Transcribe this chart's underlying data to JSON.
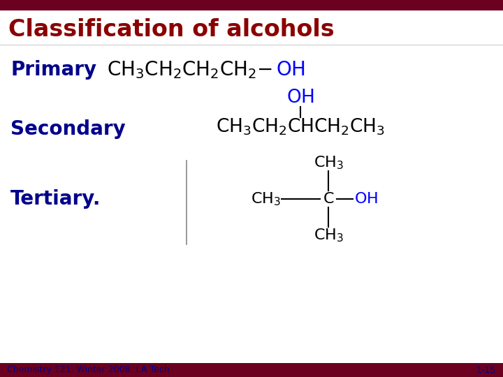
{
  "title": "Classification of alcohols",
  "title_color": "#8B0000",
  "title_bar_color": "#6B0020",
  "bg_color": "#ffffff",
  "labels": [
    "Primary",
    "Secondary",
    "Tertiary."
  ],
  "label_color": "#00008B",
  "label_fontsize": 20,
  "footer_text": "Chemistry 121, Winter 2008, LA Tech",
  "footer_right": "1-15",
  "footer_color": "#00008B",
  "footer_fontsize": 9
}
